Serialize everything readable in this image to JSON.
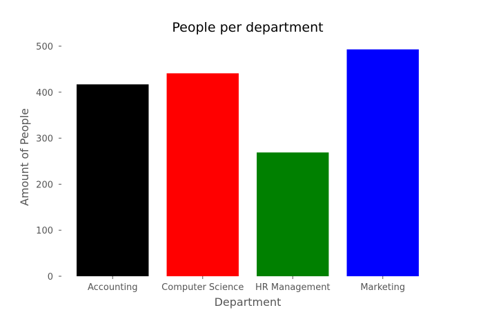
{
  "chart_data": {
    "type": "bar",
    "title": "People per department",
    "xlabel": "Department",
    "ylabel": "Amount of People",
    "categories": [
      "Accounting",
      "Computer Science",
      "HR Management",
      "Marketing"
    ],
    "values": [
      417,
      441,
      269,
      493
    ],
    "colors": [
      "#000000",
      "#ff0000",
      "#008000",
      "#0000ff"
    ],
    "ylim": [
      0,
      500
    ],
    "yticks": [
      0,
      100,
      200,
      300,
      400,
      500
    ],
    "grid": false,
    "legend": "none"
  }
}
